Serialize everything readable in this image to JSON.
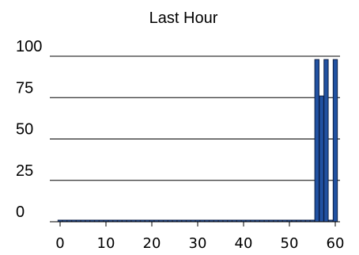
{
  "chart_data": {
    "type": "bar",
    "title": "Last Hour",
    "xlabel": "",
    "ylabel": "",
    "x": [
      0,
      1,
      2,
      3,
      4,
      5,
      6,
      7,
      8,
      9,
      10,
      11,
      12,
      13,
      14,
      15,
      16,
      17,
      18,
      19,
      20,
      21,
      22,
      23,
      24,
      25,
      26,
      27,
      28,
      29,
      30,
      31,
      32,
      33,
      34,
      35,
      36,
      37,
      38,
      39,
      40,
      41,
      42,
      43,
      44,
      45,
      46,
      47,
      48,
      49,
      50,
      51,
      52,
      53,
      54,
      55,
      56,
      57,
      58,
      59,
      60
    ],
    "values": [
      0,
      0,
      0,
      0,
      0,
      0,
      0,
      0,
      0,
      0,
      0,
      0,
      0,
      0,
      0,
      0,
      0,
      0,
      0,
      0,
      0,
      0,
      0,
      0,
      0,
      0,
      0,
      0,
      0,
      0,
      0,
      0,
      0,
      0,
      0,
      0,
      0,
      0,
      0,
      0,
      0,
      0,
      0,
      0,
      0,
      0,
      0,
      0,
      0,
      0,
      0,
      0,
      0,
      0,
      0,
      0,
      98,
      76,
      98,
      0,
      98
    ],
    "xlim": [
      -1,
      61
    ],
    "ylim": [
      0,
      100
    ],
    "y_ticks": [
      0,
      25,
      50,
      75,
      100
    ],
    "x_ticks": [
      0,
      10,
      20,
      30,
      40,
      50,
      60
    ],
    "grid": "horizontal",
    "bar_color": "#2151a1",
    "bar_edge_color": "#0d1f44"
  }
}
